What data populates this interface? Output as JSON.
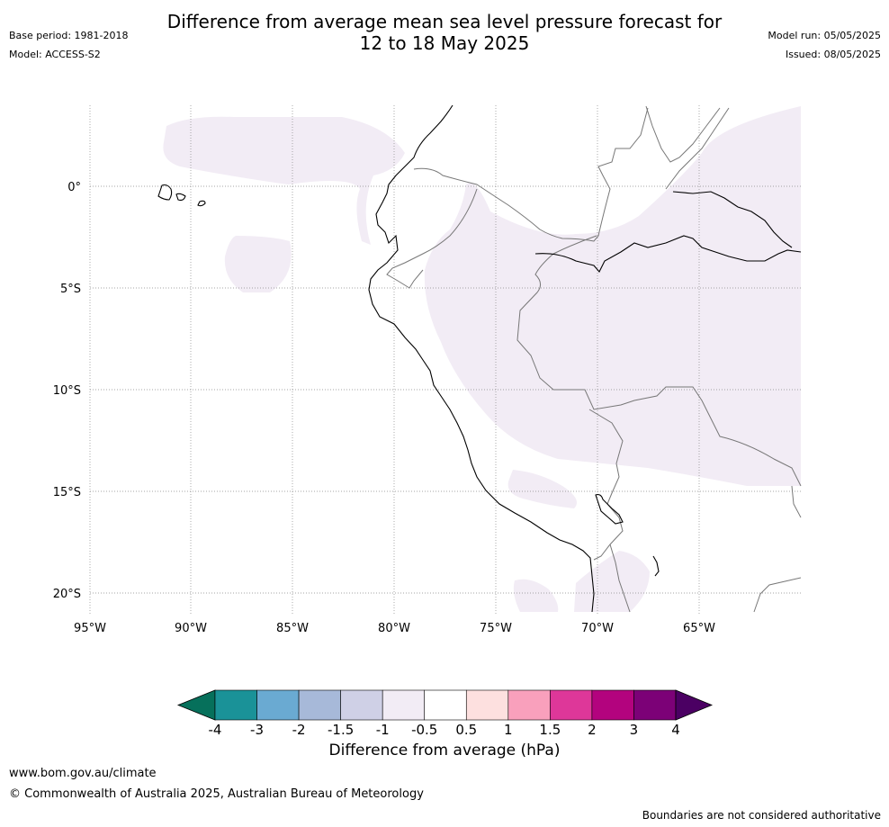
{
  "title_line1": "Difference from average mean sea level pressure forecast for",
  "title_line2": "12 to 18 May 2025",
  "base_period": "Base period: 1981-2018",
  "model": "Model: ACCESS-S2",
  "model_run": "Model run: 05/05/2025",
  "issued": "Issued: 08/05/2025",
  "lat_labels": [
    "0°",
    "5°S",
    "10°S",
    "15°S",
    "20°S"
  ],
  "lon_labels": [
    "95°W",
    "90°W",
    "85°W",
    "80°W",
    "75°W",
    "70°W",
    "65°W"
  ],
  "colorbar": {
    "label": "Difference from average (hPa)",
    "ticks": [
      "-4",
      "-3",
      "-2",
      "-1.5",
      "-1",
      "-0.5",
      "0.5",
      "1",
      "1.5",
      "2",
      "3",
      "4"
    ],
    "colors": [
      "#1a9298",
      "#6aaad2",
      "#a7b9d9",
      "#cfd0e6",
      "#f2ecf5",
      "#ffffff",
      "#fde0df",
      "#f9a0bc",
      "#de3799",
      "#b3037e",
      "#7c0177"
    ],
    "under_color": "#06705b",
    "over_color": "#4b0063"
  },
  "shading_color": "#f2ecf5",
  "footer_url": "www.bom.gov.au/climate",
  "copyright": "© Commonwealth of Australia 2025, Australian Bureau of Meteorology",
  "disclaimer": "Boundaries are not considered authoritative"
}
